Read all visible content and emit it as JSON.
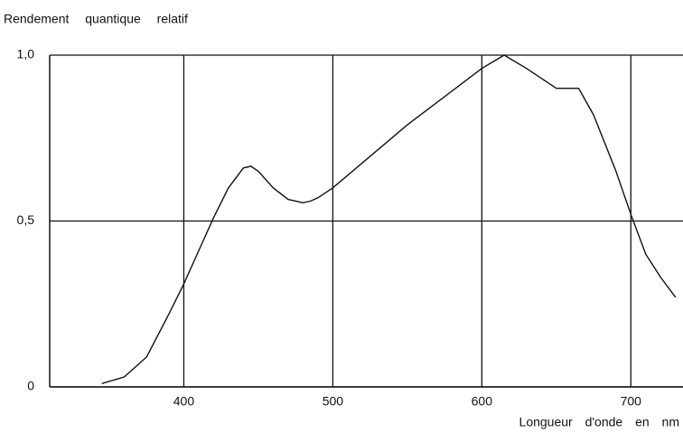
{
  "chart_data": {
    "type": "line",
    "title": "Rendement quantique relatif",
    "x_label": "Longueur d'onde en nm",
    "series": [
      {
        "name": "Rendement quantique relatif",
        "color": "#111111",
        "x": [
          345,
          360,
          375,
          390,
          400,
          410,
          420,
          430,
          440,
          445,
          450,
          460,
          470,
          480,
          485,
          490,
          500,
          550,
          600,
          615,
          630,
          650,
          665,
          675,
          690,
          700,
          710,
          720,
          730
        ],
        "values": [
          0.01,
          0.03,
          0.09,
          0.22,
          0.31,
          0.41,
          0.51,
          0.6,
          0.66,
          0.665,
          0.65,
          0.6,
          0.565,
          0.555,
          0.56,
          0.57,
          0.6,
          0.79,
          0.96,
          1.0,
          0.96,
          0.9,
          0.9,
          0.82,
          0.65,
          0.52,
          0.4,
          0.33,
          0.27
        ]
      }
    ],
    "xlim": [
      310,
      735
    ],
    "xticks": [
      400,
      500,
      600,
      700
    ],
    "ylim": [
      0,
      1.0
    ],
    "yticks": [
      0,
      {
        "value": 0.5,
        "label": "0,5"
      },
      {
        "value": 1.0,
        "label": "1,0"
      }
    ],
    "grid": true
  }
}
